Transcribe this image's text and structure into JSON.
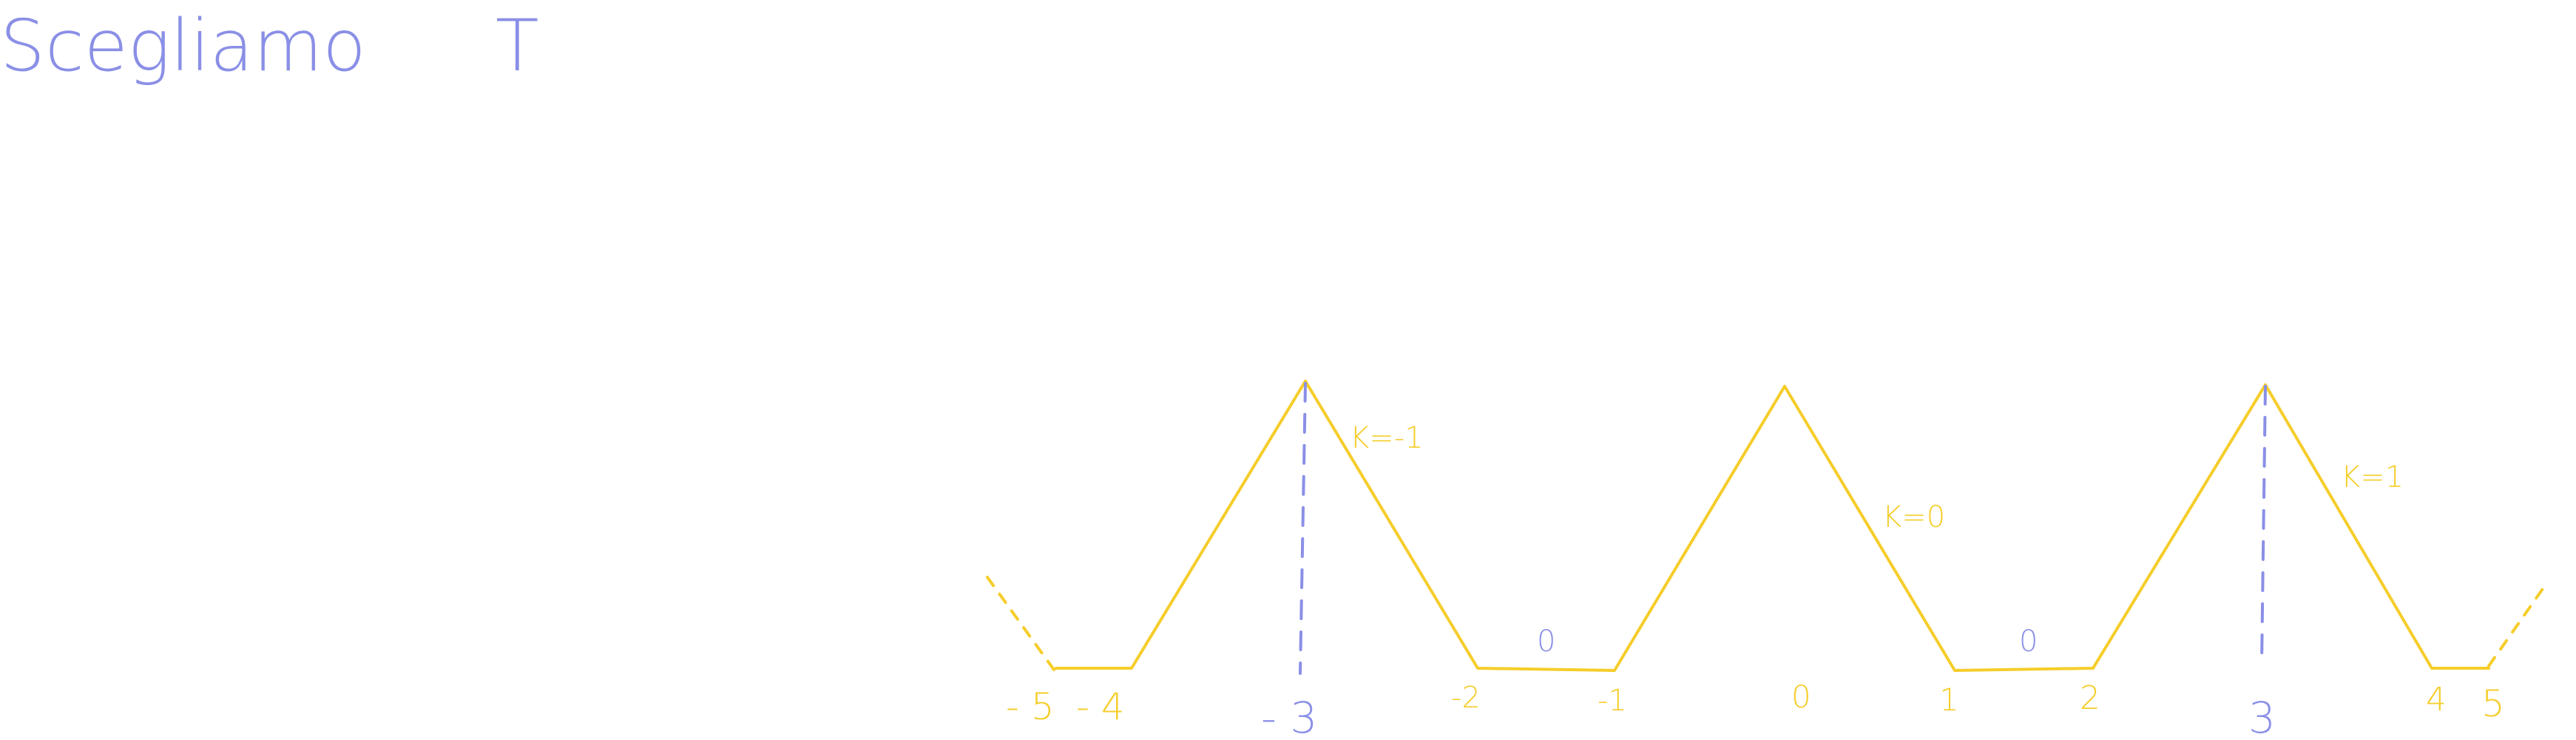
{
  "colors": {
    "blue_ink": "#8a8fe6",
    "yellow_ink": "#f5cd2a"
  },
  "title": {
    "text": "Scegliamo",
    "variable": "T"
  },
  "tick_labels": {
    "m5": "- 5",
    "m4": "- 4",
    "m3": "- 3",
    "m2": "-2",
    "m1": "-1",
    "z0": "0",
    "p1": "1",
    "p2": "2",
    "p3": "3",
    "p4": "4",
    "p5": "5"
  },
  "segment_labels": {
    "k_minus1": "K=-1",
    "k_zero": "K=0",
    "k_plus1": "K=1",
    "flat_left": "0",
    "flat_right": "0"
  }
}
